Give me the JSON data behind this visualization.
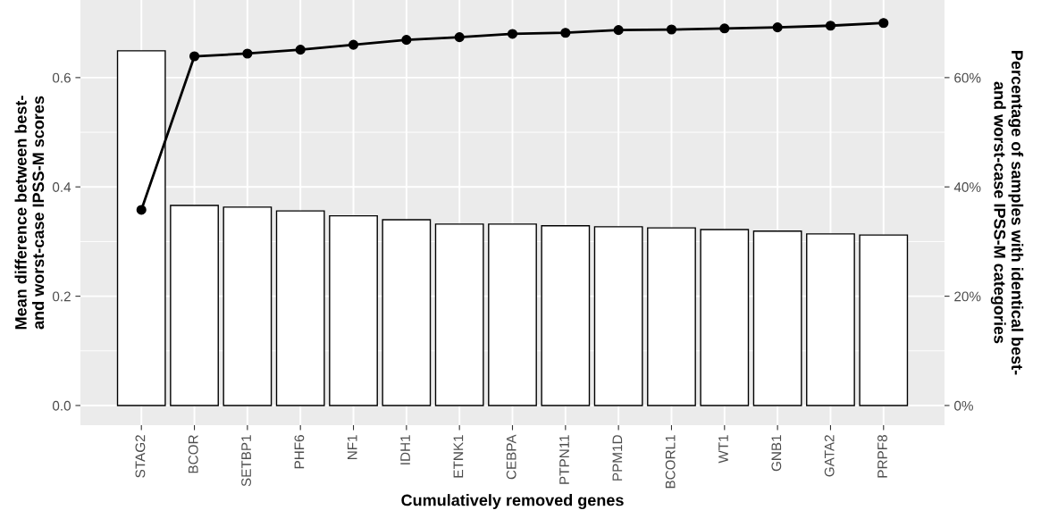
{
  "chart_data": {
    "type": "bar",
    "xlabel": "Cumulatively removed genes",
    "ylabel": "Mean difference between best-\nand worst-case IPSS-M scores",
    "y2label": "Percentage of samples with identical best-\nand worst-case IPSS-M categories",
    "categories": [
      "STAG2",
      "BCOR",
      "SETBP1",
      "PHF6",
      "NF1",
      "IDH1",
      "ETNK1",
      "CEBPA",
      "PTPN11",
      "PPM1D",
      "BCORL1",
      "WT1",
      "GNB1",
      "GATA2",
      "PRPF8"
    ],
    "series": [
      {
        "color": "#ffffff",
        "values": [
          0.649,
          0.366,
          0.363,
          0.356,
          0.347,
          0.34,
          0.332,
          0.332,
          0.329,
          0.327,
          0.325,
          0.322,
          0.319,
          0.314,
          0.312
        ]
      },
      {
        "type": "line",
        "axis": "y2",
        "color": "#000000",
        "marker": "circle",
        "values": [
          35.8,
          63.9,
          64.4,
          65.1,
          66.0,
          66.9,
          67.4,
          68.0,
          68.2,
          68.7,
          68.8,
          69.0,
          69.2,
          69.5,
          70.0
        ]
      }
    ],
    "ylim": [
      -0.036,
      0.742
    ],
    "yticks": [
      {
        "value": 0,
        "label": "0.0"
      },
      0.2,
      0.4,
      0.6
    ],
    "y2lim": [
      -3.6,
      74.2
    ],
    "y2ticks": [
      {
        "value": 0,
        "label": "0%"
      },
      {
        "value": 20,
        "label": "20%"
      },
      {
        "value": 40,
        "label": "40%"
      },
      {
        "value": 60,
        "label": "60%"
      }
    ],
    "grid": true
  }
}
